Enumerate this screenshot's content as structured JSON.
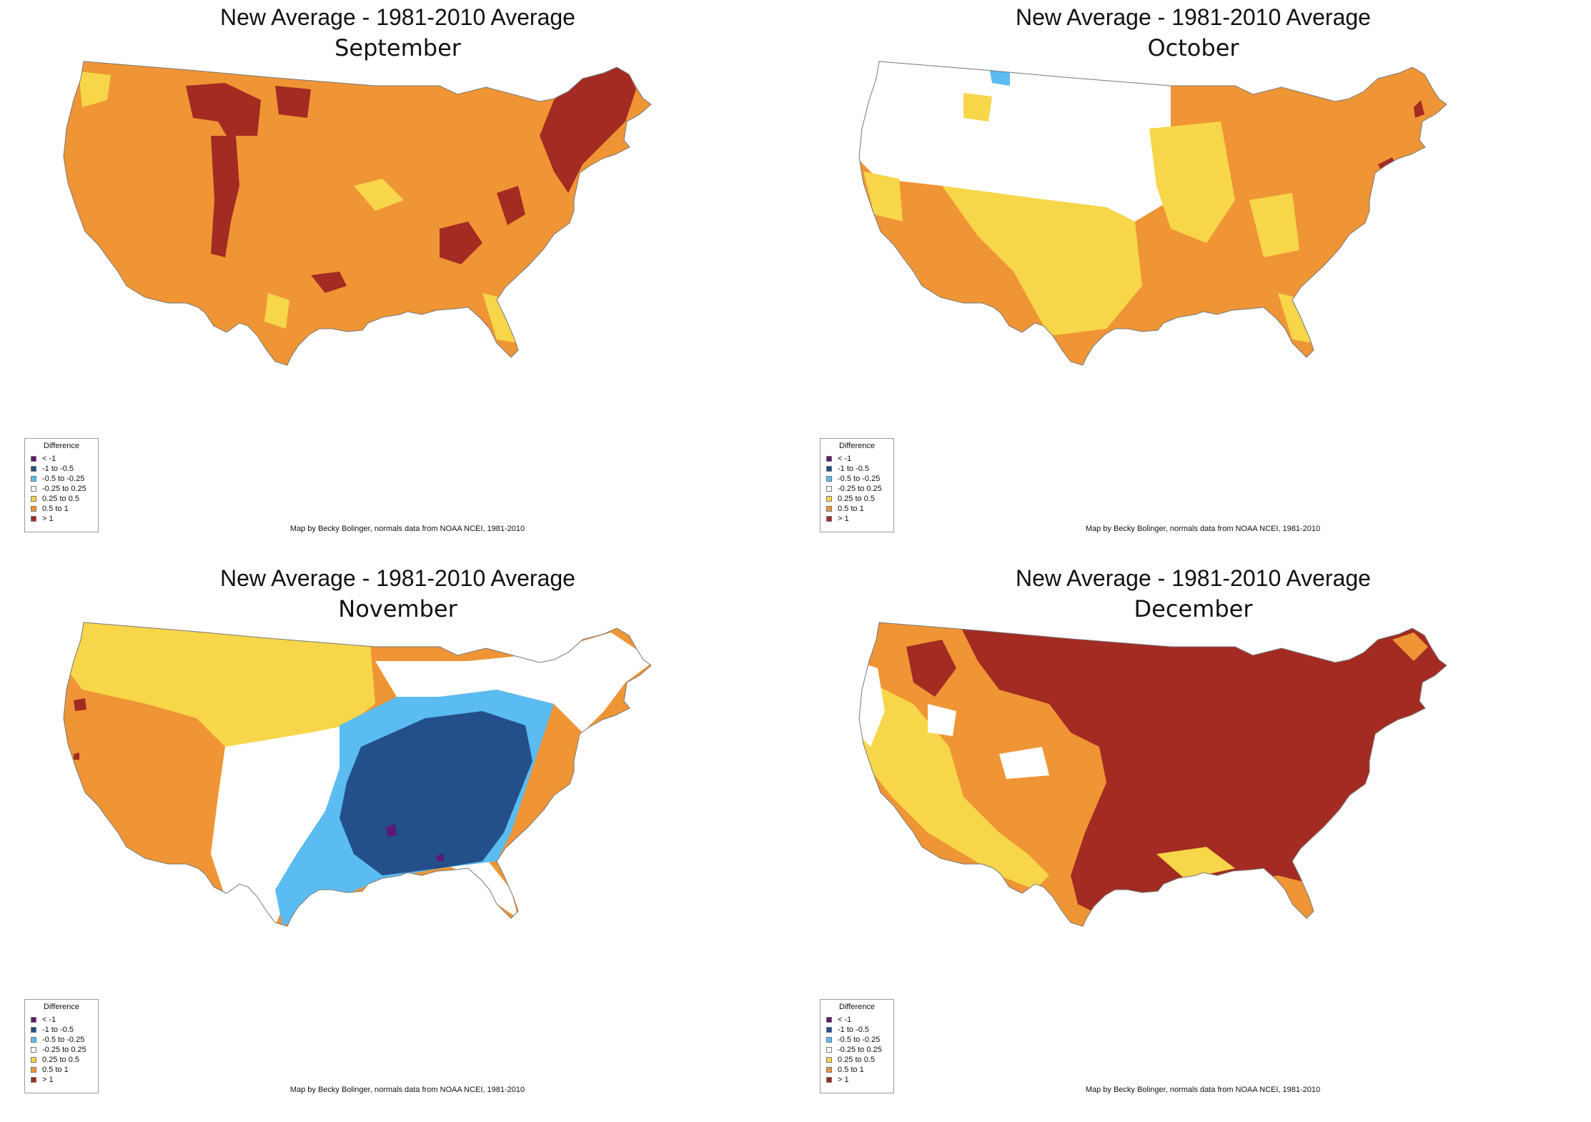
{
  "title": "New Average - 1981-2010 Average",
  "credit": "Map by Becky Bolinger, normals data from NOAA NCEI, 1981-2010",
  "legend": {
    "title": "Difference",
    "items": [
      {
        "label": "< -1",
        "color": "#5c1a73"
      },
      {
        "label": "-1 to -0.5",
        "color": "#23508a"
      },
      {
        "label": "-0.5 to -0.25",
        "color": "#5bbcf2"
      },
      {
        "label": "-0.25 to 0.25",
        "color": "#ffffff"
      },
      {
        "label": "0.25 to 0.5",
        "color": "#f7d64a"
      },
      {
        "label": "0.5 to 1",
        "color": "#ef9535"
      },
      {
        "label": "> 1",
        "color": "#a32b22"
      }
    ]
  },
  "panels": [
    {
      "month": "September",
      "base_class": "0.5 to 1"
    },
    {
      "month": "October",
      "base_class": "0.5 to 1"
    },
    {
      "month": "November",
      "base_class": "-1 to -0.5"
    },
    {
      "month": "December",
      "base_class": "> 1"
    }
  ]
}
